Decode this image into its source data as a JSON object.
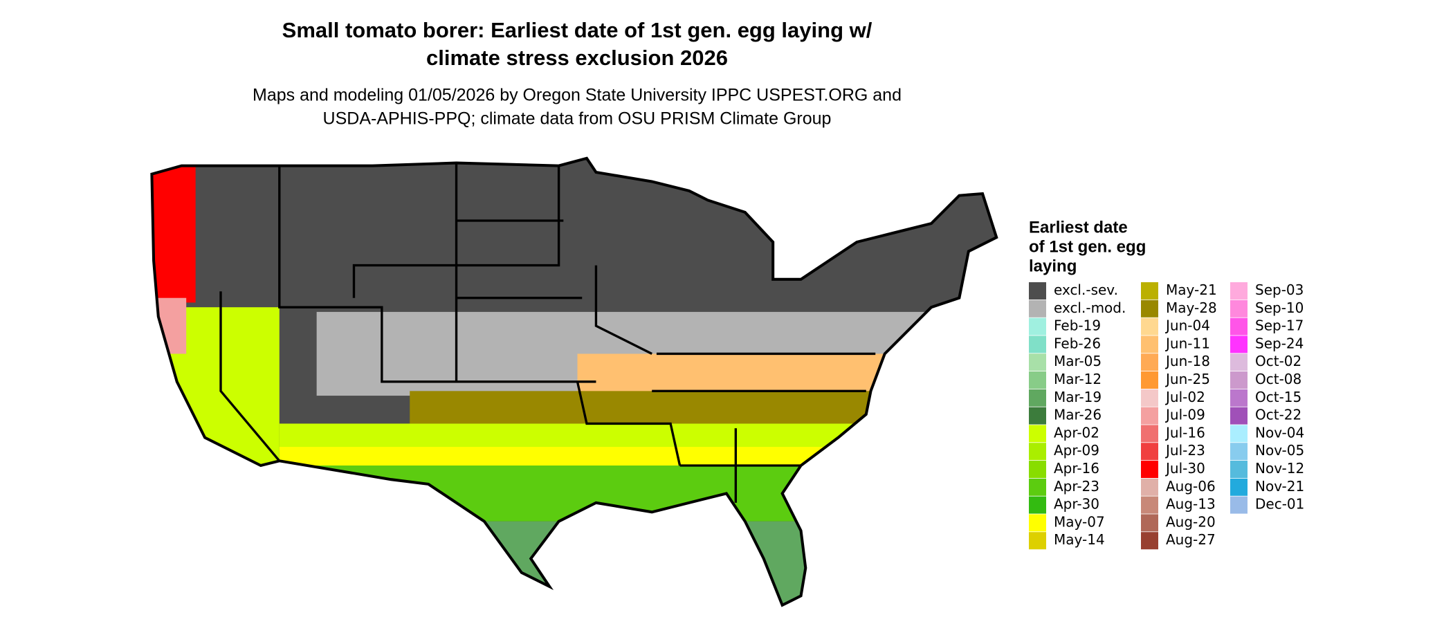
{
  "title_lines": [
    "Small tomato borer: Earliest date of 1st gen. egg laying w/",
    "climate stress exclusion 2026"
  ],
  "subtitle_lines": [
    "Maps and modeling 01/05/2026 by Oregon State University IPPC USPEST.ORG and",
    "USDA-APHIS-PPQ; climate data from OSU PRISM Climate Group"
  ],
  "legend": {
    "title_lines": [
      "Earliest date",
      "of 1st gen. egg",
      "laying"
    ],
    "columns": [
      [
        {
          "label": "excl.-sev.",
          "color": "#4d4d4d"
        },
        {
          "label": "excl.-mod.",
          "color": "#b3b3b3"
        },
        {
          "label": "Feb-19",
          "color": "#a0f0e0"
        },
        {
          "label": "Feb-26",
          "color": "#80e0c8"
        },
        {
          "label": "Mar-05",
          "color": "#a8e0a8"
        },
        {
          "label": "Mar-12",
          "color": "#88cc88"
        },
        {
          "label": "Mar-19",
          "color": "#60a860"
        },
        {
          "label": "Mar-26",
          "color": "#3c7c3c"
        },
        {
          "label": "Apr-02",
          "color": "#ccff00"
        },
        {
          "label": "Apr-09",
          "color": "#aaee00"
        },
        {
          "label": "Apr-16",
          "color": "#88dd00"
        },
        {
          "label": "Apr-23",
          "color": "#5ccc10"
        },
        {
          "label": "Apr-30",
          "color": "#33bb11"
        },
        {
          "label": "May-07",
          "color": "#ffff00"
        },
        {
          "label": "May-14",
          "color": "#ddd000"
        }
      ],
      [
        {
          "label": "May-21",
          "color": "#bbb000"
        },
        {
          "label": "May-28",
          "color": "#998800"
        },
        {
          "label": "Jun-04",
          "color": "#ffd890"
        },
        {
          "label": "Jun-11",
          "color": "#ffc070"
        },
        {
          "label": "Jun-18",
          "color": "#ffaa55"
        },
        {
          "label": "Jun-25",
          "color": "#ff9933"
        },
        {
          "label": "Jul-02",
          "color": "#f4c8c8"
        },
        {
          "label": "Jul-09",
          "color": "#f4a0a0"
        },
        {
          "label": "Jul-16",
          "color": "#f07070"
        },
        {
          "label": "Jul-23",
          "color": "#f04040"
        },
        {
          "label": "Jul-30",
          "color": "#ff0000"
        },
        {
          "label": "Aug-06",
          "color": "#e0b0a8"
        },
        {
          "label": "Aug-13",
          "color": "#c88878"
        },
        {
          "label": "Aug-20",
          "color": "#b06858"
        },
        {
          "label": "Aug-27",
          "color": "#984030"
        }
      ],
      [
        {
          "label": "Sep-03",
          "color": "#ffaadd"
        },
        {
          "label": "Sep-10",
          "color": "#ff88dd"
        },
        {
          "label": "Sep-17",
          "color": "#ff55e8"
        },
        {
          "label": "Sep-24",
          "color": "#ff33ff"
        },
        {
          "label": "Oct-02",
          "color": "#ddbbdd"
        },
        {
          "label": "Oct-08",
          "color": "#cc99cc"
        },
        {
          "label": "Oct-15",
          "color": "#bb77cc"
        },
        {
          "label": "Oct-22",
          "color": "#a050b8"
        },
        {
          "label": "Nov-04",
          "color": "#aaeeff"
        },
        {
          "label": "Nov-05",
          "color": "#88ccee"
        },
        {
          "label": "Nov-12",
          "color": "#55bbdd"
        },
        {
          "label": "Nov-21",
          "color": "#22aadd"
        },
        {
          "label": "Dec-01",
          "color": "#99bbe8"
        }
      ]
    ]
  }
}
